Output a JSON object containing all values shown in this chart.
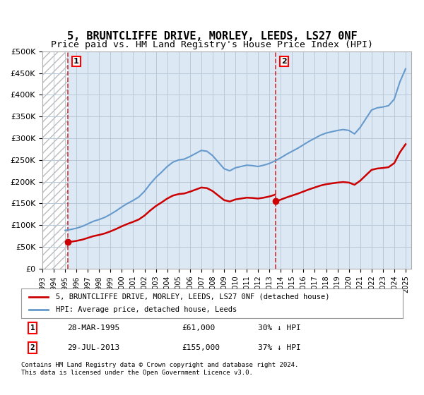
{
  "title": "5, BRUNTCLIFFE DRIVE, MORLEY, LEEDS, LS27 0NF",
  "subtitle": "Price paid vs. HM Land Registry's House Price Index (HPI)",
  "title_fontsize": 11,
  "subtitle_fontsize": 9.5,
  "ylim": [
    0,
    500000
  ],
  "yticks": [
    0,
    50000,
    100000,
    150000,
    200000,
    250000,
    300000,
    350000,
    400000,
    450000,
    500000
  ],
  "ytick_labels": [
    "£0",
    "£50K",
    "£100K",
    "£150K",
    "£200K",
    "£250K",
    "£300K",
    "£350K",
    "£400K",
    "£450K",
    "£500K"
  ],
  "xlim_start": 1993.0,
  "xlim_end": 2025.5,
  "xtick_years": [
    1993,
    1994,
    1995,
    1996,
    1997,
    1998,
    1999,
    2000,
    2001,
    2002,
    2003,
    2004,
    2005,
    2006,
    2007,
    2008,
    2009,
    2010,
    2011,
    2012,
    2013,
    2014,
    2015,
    2016,
    2017,
    2018,
    2019,
    2020,
    2021,
    2022,
    2023,
    2024,
    2025
  ],
  "hatch_end_year": 1995.23,
  "sale1_year": 1995.23,
  "sale1_price": 61000,
  "sale1_label": "1",
  "sale2_year": 2013.57,
  "sale2_price": 155000,
  "sale2_label": "2",
  "property_color": "#cc0000",
  "hpi_color": "#6699cc",
  "bg_color": "#dce9f5",
  "grid_color": "#b8c8d8",
  "hatch_color": "#bbbbbb",
  "legend_label_property": "5, BRUNTCLIFFE DRIVE, MORLEY, LEEDS, LS27 0NF (detached house)",
  "legend_label_hpi": "HPI: Average price, detached house, Leeds",
  "footer_line1": "Contains HM Land Registry data © Crown copyright and database right 2024.",
  "footer_line2": "This data is licensed under the Open Government Licence v3.0.",
  "table_row1": [
    "1",
    "28-MAR-1995",
    "£61,000",
    "30% ↓ HPI"
  ],
  "table_row2": [
    "2",
    "29-JUL-2013",
    "£155,000",
    "37% ↓ HPI"
  ],
  "hpi_data_x": [
    1995.0,
    1995.5,
    1996.0,
    1996.5,
    1997.0,
    1997.5,
    1998.0,
    1998.5,
    1999.0,
    1999.5,
    2000.0,
    2000.5,
    2001.0,
    2001.5,
    2002.0,
    2002.5,
    2003.0,
    2003.5,
    2004.0,
    2004.5,
    2005.0,
    2005.5,
    2006.0,
    2006.5,
    2007.0,
    2007.5,
    2008.0,
    2008.5,
    2009.0,
    2009.5,
    2010.0,
    2010.5,
    2011.0,
    2011.5,
    2012.0,
    2012.5,
    2013.0,
    2013.5,
    2014.0,
    2014.5,
    2015.0,
    2015.5,
    2016.0,
    2016.5,
    2017.0,
    2017.5,
    2018.0,
    2018.5,
    2019.0,
    2019.5,
    2020.0,
    2020.5,
    2021.0,
    2021.5,
    2022.0,
    2022.5,
    2023.0,
    2023.5,
    2024.0,
    2024.5,
    2025.0
  ],
  "hpi_data_y": [
    88000,
    90000,
    93000,
    97000,
    103000,
    109000,
    113000,
    118000,
    125000,
    133000,
    142000,
    150000,
    157000,
    165000,
    178000,
    195000,
    210000,
    222000,
    235000,
    245000,
    250000,
    252000,
    258000,
    265000,
    272000,
    270000,
    260000,
    245000,
    230000,
    225000,
    232000,
    235000,
    238000,
    237000,
    235000,
    238000,
    242000,
    248000,
    255000,
    263000,
    270000,
    277000,
    285000,
    293000,
    300000,
    307000,
    312000,
    315000,
    318000,
    320000,
    318000,
    310000,
    325000,
    345000,
    365000,
    370000,
    372000,
    375000,
    390000,
    430000,
    460000
  ],
  "property_data_x": [
    1995.23,
    2013.57
  ],
  "property_data_y": [
    61000,
    155000
  ]
}
